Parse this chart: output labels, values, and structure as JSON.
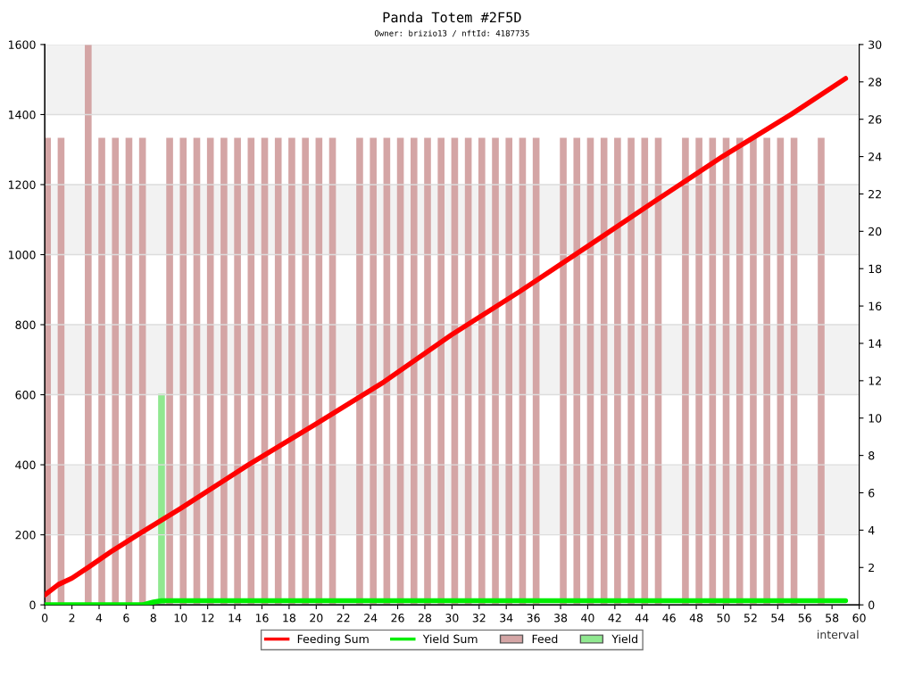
{
  "chart_data": {
    "type": "line",
    "title": "Panda Totem #2F5D",
    "subtitle": "Owner: brizio13 / nftId: 4187735",
    "xlabel": "interval",
    "xlim": [
      0,
      60
    ],
    "xticks": [
      0,
      2,
      4,
      6,
      8,
      10,
      12,
      14,
      16,
      18,
      20,
      22,
      24,
      26,
      28,
      30,
      32,
      34,
      36,
      38,
      40,
      42,
      44,
      46,
      48,
      50,
      52,
      54,
      56,
      58,
      60
    ],
    "ylim": [
      0,
      1600
    ],
    "yticks": [
      0,
      200,
      400,
      600,
      800,
      1000,
      1200,
      1400,
      1600
    ],
    "y2lim": [
      0,
      30
    ],
    "y2ticks": [
      0,
      2,
      4,
      6,
      8,
      10,
      12,
      14,
      16,
      18,
      20,
      22,
      24,
      26,
      28,
      30
    ],
    "grid": "y",
    "legend": "bottom",
    "marker": "none",
    "line_style": "solid",
    "bands": [
      {
        "axis": "y",
        "from": 200,
        "to": 400,
        "color": "#f2f2f2"
      },
      {
        "axis": "y",
        "from": 600,
        "to": 800,
        "color": "#f2f2f2"
      },
      {
        "axis": "y",
        "from": 1000,
        "to": 1200,
        "color": "#f2f2f2"
      },
      {
        "axis": "y",
        "from": 1400,
        "to": 1600,
        "color": "#f2f2f2"
      }
    ],
    "series": [
      {
        "name": "Feed",
        "type": "bar",
        "axis": "y2",
        "color": "#d4a5a5",
        "x": [
          0.2,
          1.2,
          3.2,
          4.2,
          5.2,
          6.2,
          7.2,
          9.2,
          10.2,
          11.2,
          12.2,
          13.2,
          14.2,
          15.2,
          16.2,
          17.2,
          18.2,
          19.2,
          20.2,
          21.2,
          23.2,
          24.2,
          25.2,
          26.2,
          27.2,
          28.2,
          29.2,
          30.2,
          31.2,
          32.2,
          33.2,
          34.2,
          35.2,
          36.2,
          38.2,
          39.2,
          40.2,
          41.2,
          42.2,
          43.2,
          44.2,
          45.2,
          47.2,
          48.2,
          49.2,
          50.2,
          51.2,
          52.2,
          53.2,
          54.2,
          55.2,
          57.2
        ],
        "values": [
          25,
          25,
          30,
          25,
          25,
          25,
          25,
          25,
          25,
          25,
          25,
          25,
          25,
          25,
          25,
          25,
          25,
          25,
          25,
          25,
          25,
          25,
          25,
          25,
          25,
          25,
          25,
          25,
          25,
          25,
          25,
          25,
          25,
          25,
          25,
          25,
          25,
          25,
          25,
          25,
          25,
          25,
          25,
          25,
          25,
          25,
          25,
          25,
          25,
          25,
          25,
          25
        ]
      },
      {
        "name": "Yield",
        "type": "bar",
        "axis": "y2",
        "color": "#90e890",
        "x": [
          8.6
        ],
        "values": [
          11.3
        ]
      },
      {
        "name": "Feeding Sum",
        "axis": "y",
        "color": "#ff0000",
        "x": [
          0,
          1,
          2,
          3.2,
          5,
          7,
          10,
          15,
          20,
          25,
          30,
          35,
          40,
          45,
          50,
          55,
          59
        ],
        "values": [
          28,
          58,
          76,
          107,
          155,
          204,
          275,
          400,
          517,
          637,
          772,
          895,
          1024,
          1154,
          1282,
          1401,
          1503
        ]
      },
      {
        "name": "Yield Sum",
        "axis": "y",
        "color": "#00ee00",
        "x": [
          0,
          7.2,
          8,
          8.6,
          59
        ],
        "values": [
          0,
          0,
          8,
          12,
          12
        ]
      }
    ]
  }
}
